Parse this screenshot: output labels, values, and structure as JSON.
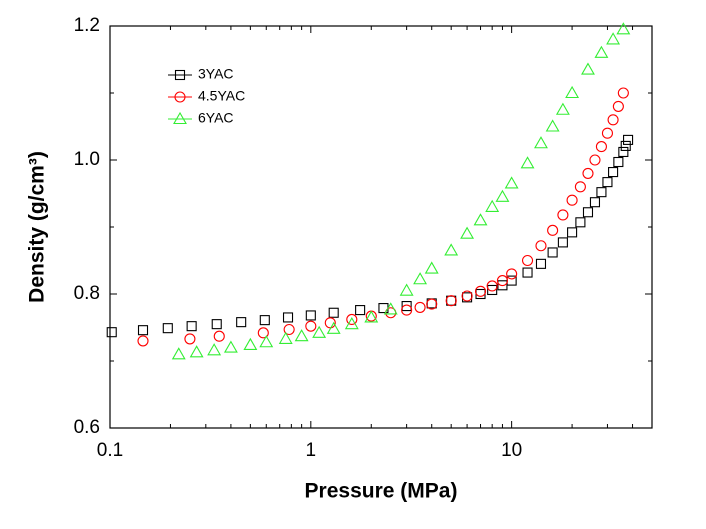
{
  "chart_data": {
    "type": "scatter",
    "x_label": "Pressure (MPa)",
    "y_label": "Density (g/cm³)",
    "x_scale": "log",
    "xlim": [
      0.1,
      50
    ],
    "ylim": [
      0.6,
      1.2
    ],
    "xticks": [
      0.1,
      1,
      10
    ],
    "yticks": [
      0.6,
      0.8,
      {
        "value": 1,
        "label": "1.0"
      },
      1.2
    ],
    "yminorticks": [
      0.7,
      0.9,
      1.1
    ],
    "legend": "upper left",
    "series": [
      {
        "name": "3YAC",
        "color": "#000000",
        "marker": "square",
        "x": [
          0.102,
          0.146,
          0.194,
          0.255,
          0.34,
          0.45,
          0.59,
          0.77,
          1.0,
          1.3,
          1.76,
          2.3,
          3.0,
          4.0,
          5.0,
          6.0,
          7.0,
          8.0,
          9.0,
          10,
          12,
          14,
          16,
          18,
          20,
          22,
          24,
          26,
          28,
          30,
          32,
          34,
          36,
          37,
          38
        ],
        "values": [
          0.743,
          0.746,
          0.749,
          0.752,
          0.755,
          0.758,
          0.761,
          0.765,
          0.768,
          0.772,
          0.776,
          0.779,
          0.782,
          0.786,
          0.79,
          0.795,
          0.8,
          0.806,
          0.813,
          0.82,
          0.832,
          0.845,
          0.862,
          0.877,
          0.892,
          0.907,
          0.922,
          0.937,
          0.952,
          0.967,
          0.982,
          0.997,
          1.012,
          1.021,
          1.03
        ]
      },
      {
        "name": "4.5YAC",
        "color": "#ff0000",
        "marker": "circle",
        "x": [
          0.146,
          0.25,
          0.35,
          0.58,
          0.78,
          1.0,
          1.25,
          1.6,
          2.0,
          2.5,
          3.0,
          3.5,
          4.0,
          5.0,
          6.0,
          7.0,
          8.0,
          9.0,
          10,
          12,
          14,
          16,
          18,
          20,
          22,
          24,
          26,
          28,
          30,
          32,
          34,
          36
        ],
        "values": [
          0.73,
          0.733,
          0.737,
          0.742,
          0.747,
          0.752,
          0.757,
          0.762,
          0.767,
          0.772,
          0.776,
          0.78,
          0.785,
          0.79,
          0.797,
          0.804,
          0.812,
          0.82,
          0.83,
          0.85,
          0.872,
          0.895,
          0.918,
          0.94,
          0.96,
          0.98,
          1.0,
          1.02,
          1.04,
          1.06,
          1.08,
          1.1
        ]
      },
      {
        "name": "6YAC",
        "color": "#33ee33",
        "marker": "triangle",
        "x": [
          0.22,
          0.27,
          0.33,
          0.4,
          0.5,
          0.6,
          0.75,
          0.9,
          1.1,
          1.3,
          1.6,
          2.0,
          2.5,
          3.0,
          3.5,
          4.0,
          5.0,
          6.0,
          7.0,
          8.0,
          9.0,
          10,
          12,
          14,
          16,
          18,
          20,
          24,
          28,
          32,
          36
        ],
        "values": [
          0.71,
          0.713,
          0.716,
          0.72,
          0.724,
          0.728,
          0.733,
          0.737,
          0.742,
          0.748,
          0.755,
          0.765,
          0.777,
          0.805,
          0.822,
          0.838,
          0.865,
          0.89,
          0.91,
          0.93,
          0.945,
          0.965,
          0.995,
          1.025,
          1.05,
          1.075,
          1.1,
          1.135,
          1.16,
          1.18,
          1.195
        ]
      }
    ]
  }
}
